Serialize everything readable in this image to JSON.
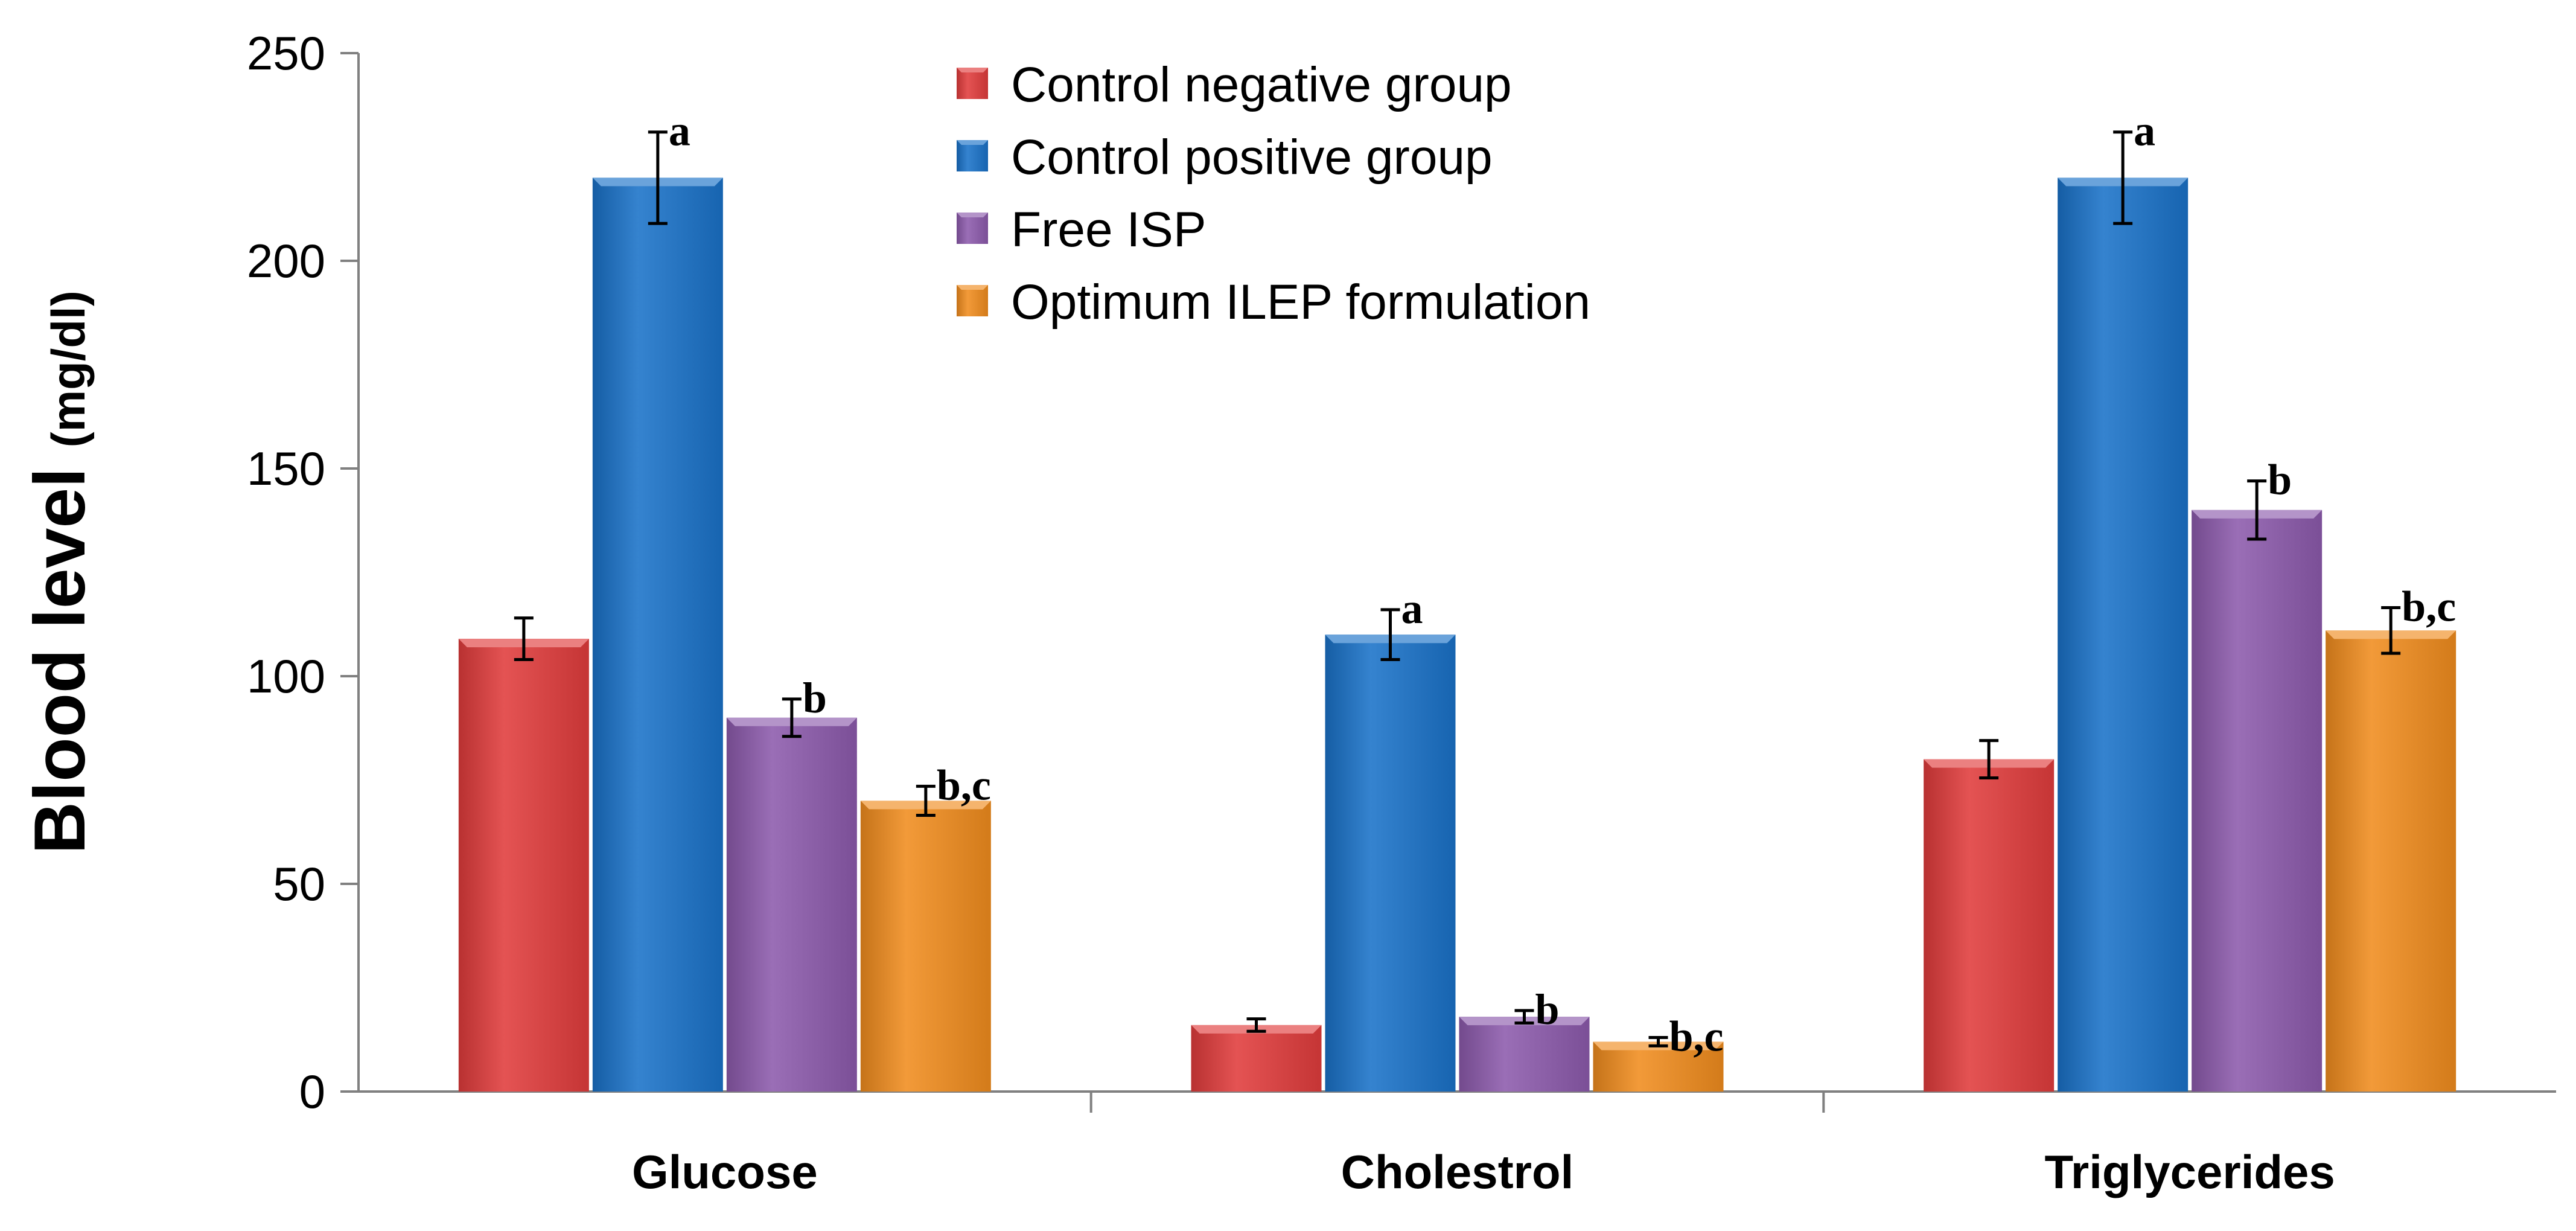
{
  "chart_data": {
    "type": "bar",
    "title": "",
    "xlabel": "",
    "ylabel": "Blood level",
    "ylabel_unit": "(mg/dl)",
    "ylim": [
      0,
      250
    ],
    "yticks": [
      0,
      50,
      100,
      150,
      200,
      250
    ],
    "grid": false,
    "legend_position": "top-center",
    "categories": [
      "Glucose",
      "Cholestrol",
      "Triglycerides"
    ],
    "series": [
      {
        "name": "Control negative group",
        "color": "#e03c3c",
        "values": [
          109,
          16,
          80
        ],
        "errors": [
          5,
          1.5,
          4.5
        ],
        "labels": [
          "",
          "",
          ""
        ]
      },
      {
        "name": "Control positive group",
        "color": "#1a72c8",
        "values": [
          220,
          110,
          220
        ],
        "errors": [
          11,
          6,
          11
        ],
        "labels": [
          "a",
          "a",
          "a"
        ]
      },
      {
        "name": "Free ISP",
        "color": "#8c5aac",
        "values": [
          90,
          18,
          140
        ],
        "errors": [
          4.5,
          1.5,
          7
        ],
        "labels": [
          "b",
          "b",
          "b"
        ]
      },
      {
        "name": "Optimum ILEP formulation",
        "color": "#f08c1e",
        "values": [
          70,
          12,
          111
        ],
        "errors": [
          3.5,
          1,
          5.5
        ],
        "labels": [
          "b,c",
          "b,c",
          "b,c"
        ]
      }
    ]
  }
}
